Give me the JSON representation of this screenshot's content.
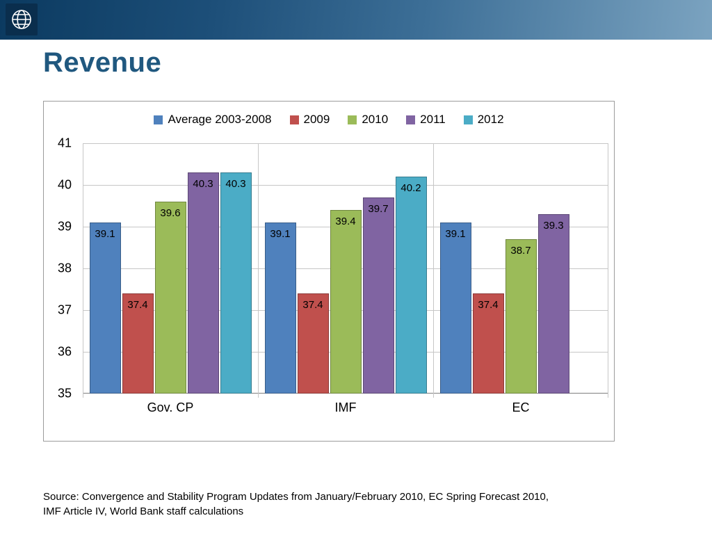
{
  "slide": {
    "title": "Revenue",
    "source_lines": [
      "Source: Convergence  and Stability Program Updates from January/February 2010, EC Spring Forecast 2010,",
      "IMF Article IV, World Bank staff calculations"
    ]
  },
  "header": {
    "logo_icon": "globe-icon"
  },
  "chart_data": {
    "type": "bar",
    "title": "",
    "xlabel": "",
    "ylabel": "",
    "categories": [
      "Gov. CP",
      "IMF",
      "EC"
    ],
    "series": [
      {
        "name": "Average 2003-2008",
        "color": "#4F81BD",
        "values": [
          39.1,
          39.1,
          39.1
        ]
      },
      {
        "name": "2009",
        "color": "#C0504D",
        "values": [
          37.4,
          37.4,
          37.4
        ]
      },
      {
        "name": "2010",
        "color": "#9BBB59",
        "values": [
          39.6,
          39.4,
          38.7
        ]
      },
      {
        "name": "2011",
        "color": "#8064A2",
        "values": [
          40.3,
          39.7,
          39.3
        ]
      },
      {
        "name": "2012",
        "color": "#4BACC6",
        "values": [
          40.3,
          40.2,
          null
        ]
      }
    ],
    "ylim": [
      35,
      41
    ],
    "ytick_step": 1,
    "grid": true,
    "legend_position": "top",
    "data_labels": true
  }
}
